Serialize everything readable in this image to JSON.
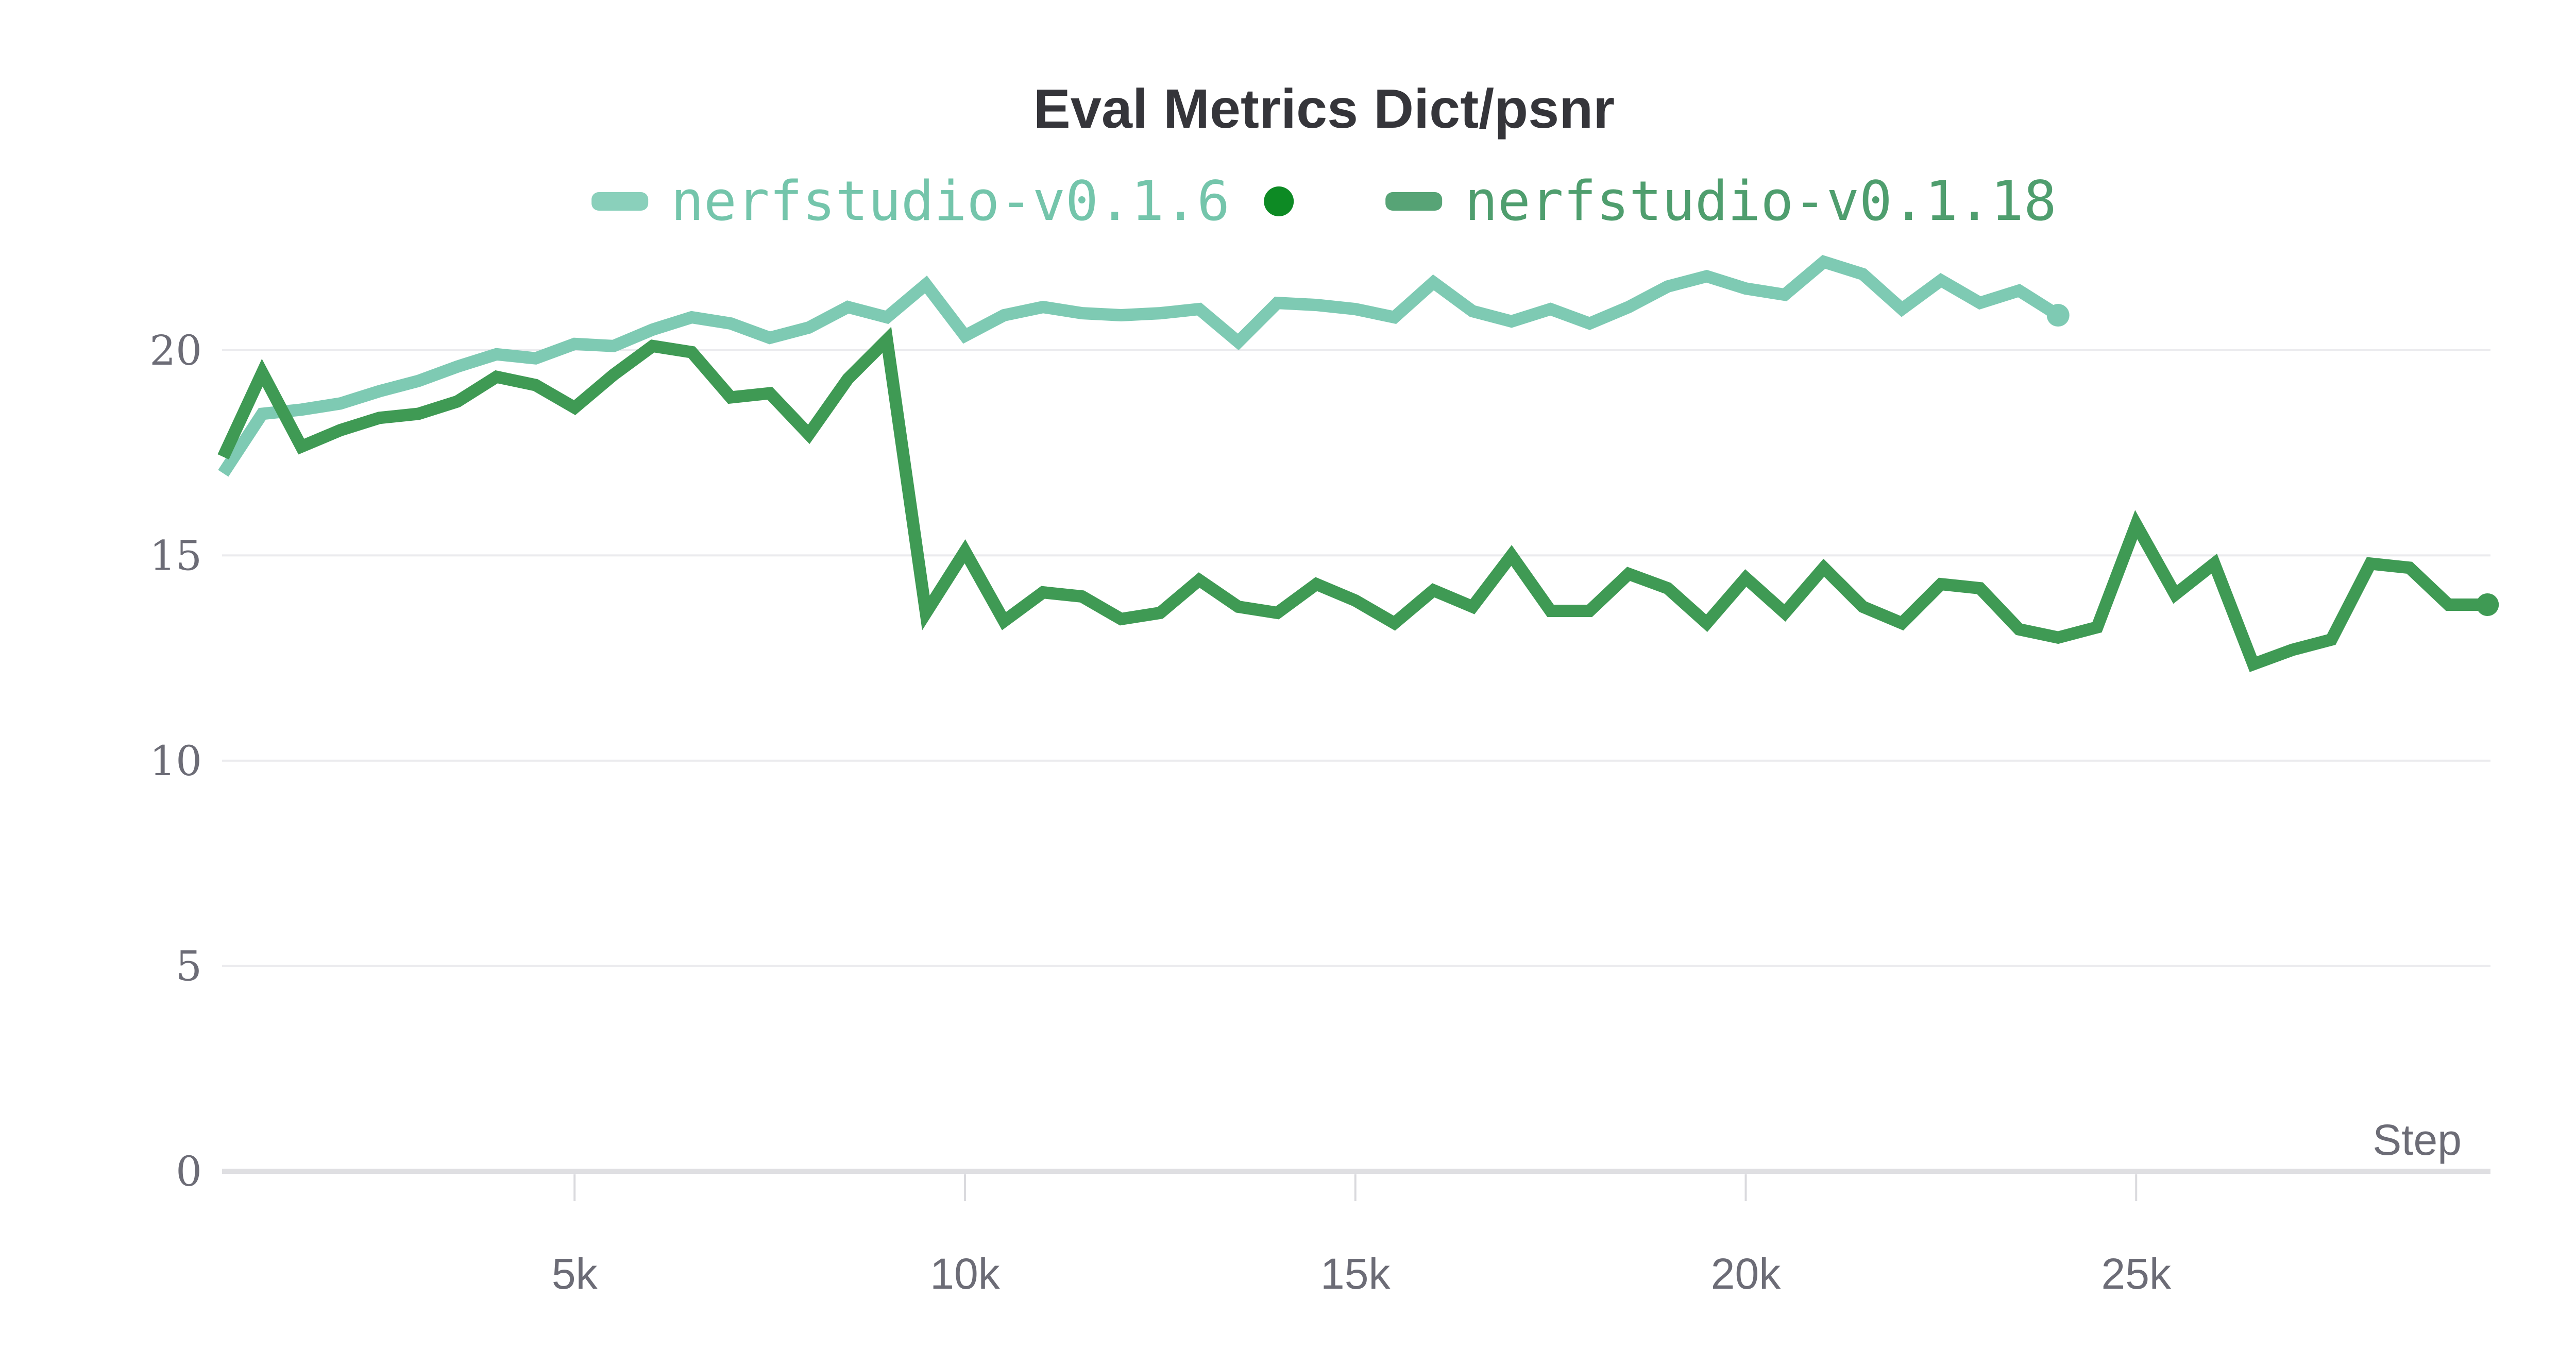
{
  "header": {
    "title": "Eval Metrics Dict/psnr"
  },
  "legend": {
    "separator_color": "#0d8a24",
    "items": [
      {
        "label": "nerfstudio-v0.1.6",
        "swatch_color": "#8ad0bb",
        "text_color": "#74c5ab"
      },
      {
        "label": "nerfstudio-v0.1.18",
        "swatch_color": "#57a476",
        "text_color": "#4f9e6e"
      }
    ]
  },
  "axes": {
    "x_title": "Step",
    "y_ticks": [
      0,
      5,
      10,
      15,
      20
    ],
    "x_ticks": [
      {
        "value": 5000,
        "label": "5k"
      },
      {
        "value": 10000,
        "label": "10k"
      },
      {
        "value": 15000,
        "label": "15k"
      },
      {
        "value": 20000,
        "label": "20k"
      },
      {
        "value": 25000,
        "label": "25k"
      }
    ]
  },
  "chart_data": {
    "type": "line",
    "title": "Eval Metrics Dict/psnr",
    "xlabel": "Step",
    "ylabel": "",
    "xlim": [
      0,
      30000
    ],
    "ylim": [
      0,
      22.5
    ],
    "grid": "horizontal",
    "legend_position": "top-center",
    "step_interval": 500,
    "series": [
      {
        "name": "nerfstudio-v0.1.6",
        "color": "#7ecab3",
        "end_dot": true,
        "x": [
          500,
          1000,
          1500,
          2000,
          2500,
          3000,
          3500,
          4000,
          4500,
          5000,
          5500,
          6000,
          6500,
          7000,
          7500,
          8000,
          8500,
          9000,
          9500,
          10000,
          10500,
          11000,
          11500,
          12000,
          12500,
          13000,
          13500,
          14000,
          14500,
          15000,
          15500,
          16000,
          16500,
          17000,
          17500,
          18000,
          18500,
          19000,
          19500,
          20000,
          20500,
          21000,
          21500,
          22000,
          22500,
          23000,
          23500,
          24000
        ],
        "values": [
          17.0,
          18.45,
          18.55,
          18.7,
          19.0,
          19.25,
          19.6,
          19.9,
          19.8,
          20.15,
          20.1,
          20.5,
          20.8,
          20.65,
          20.3,
          20.55,
          21.05,
          20.8,
          21.6,
          20.35,
          20.85,
          21.05,
          20.9,
          20.85,
          20.9,
          21.0,
          20.2,
          21.15,
          21.1,
          21.0,
          20.8,
          21.65,
          20.95,
          20.7,
          21.0,
          20.65,
          21.05,
          21.55,
          21.8,
          21.5,
          21.35,
          22.15,
          21.85,
          21.0,
          21.7,
          21.15,
          21.45,
          20.85
        ]
      },
      {
        "name": "nerfstudio-v0.1.18",
        "color": "#3f9a54",
        "end_dot": true,
        "x": [
          500,
          1000,
          1500,
          2000,
          2500,
          3000,
          3500,
          4000,
          4500,
          5000,
          5500,
          6000,
          6500,
          7000,
          7500,
          8000,
          8500,
          9000,
          9500,
          10000,
          10500,
          11000,
          11500,
          12000,
          12500,
          13000,
          13500,
          14000,
          14500,
          15000,
          15500,
          16000,
          16500,
          17000,
          17500,
          18000,
          18500,
          19000,
          19500,
          20000,
          20500,
          21000,
          21500,
          22000,
          22500,
          23000,
          23500,
          24000,
          24500,
          25000,
          25500,
          26000,
          26500,
          27000,
          27500,
          28000,
          28500,
          29000,
          29500
        ],
        "values": [
          17.4,
          19.45,
          17.65,
          18.05,
          18.35,
          18.45,
          18.75,
          19.35,
          19.15,
          18.6,
          19.4,
          20.1,
          19.95,
          18.85,
          18.95,
          17.95,
          19.3,
          20.25,
          13.6,
          15.1,
          13.4,
          14.1,
          14.0,
          13.45,
          13.6,
          14.4,
          13.75,
          13.6,
          14.3,
          13.9,
          13.35,
          14.15,
          13.75,
          15.0,
          13.65,
          13.65,
          14.55,
          14.2,
          13.35,
          14.45,
          13.6,
          14.7,
          13.75,
          13.35,
          14.3,
          14.2,
          13.2,
          13.0,
          13.25,
          15.75,
          14.05,
          14.8,
          12.35,
          12.7,
          12.95,
          14.8,
          14.7,
          13.8,
          13.8
        ]
      }
    ]
  },
  "style": {
    "gridline_color": "#ebebee",
    "axisline_color": "#dfdfe2",
    "tickmark_color": "#dadade",
    "title_color": "#35353a",
    "tick_label_color": "#6c6c76"
  }
}
